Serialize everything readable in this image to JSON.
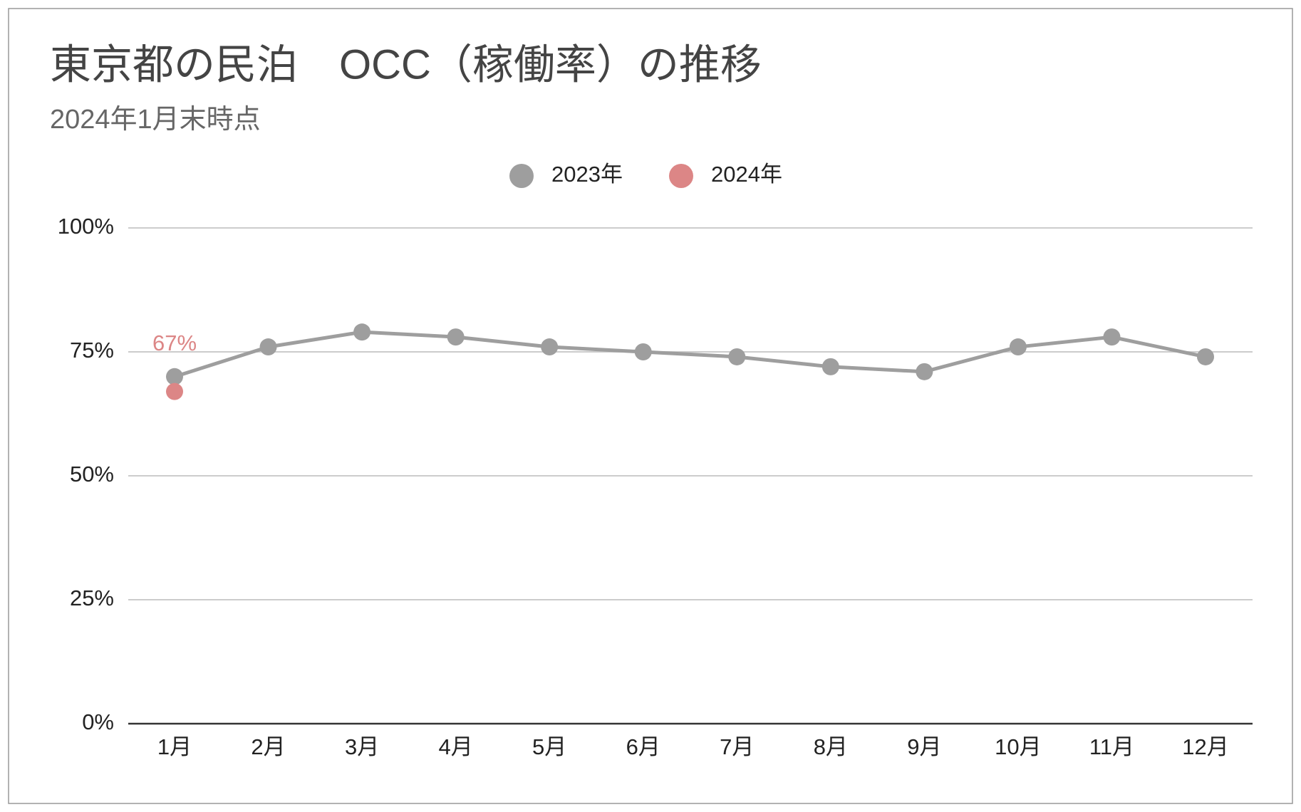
{
  "chart_data": {
    "type": "line",
    "title": "東京都の民泊　OCC（稼働率）の推移",
    "subtitle": "2024年1月末時点",
    "categories": [
      "1月",
      "2月",
      "3月",
      "4月",
      "5月",
      "6月",
      "7月",
      "8月",
      "9月",
      "10月",
      "11月",
      "12月"
    ],
    "series": [
      {
        "name": "2023年",
        "color": "#9e9e9e",
        "values": [
          70,
          76,
          79,
          78,
          76,
          75,
          74,
          72,
          71,
          76,
          78,
          74
        ]
      },
      {
        "name": "2024年",
        "color": "#dc8686",
        "values": [
          67,
          null,
          null,
          null,
          null,
          null,
          null,
          null,
          null,
          null,
          null,
          null
        ],
        "value_labels": [
          "67%",
          null,
          null,
          null,
          null,
          null,
          null,
          null,
          null,
          null,
          null,
          null
        ]
      }
    ],
    "ylim": [
      0,
      100
    ],
    "yticks": [
      {
        "value": 0,
        "label": "0%"
      },
      {
        "value": 25,
        "label": "25%"
      },
      {
        "value": 50,
        "label": "50%"
      },
      {
        "value": 75,
        "label": "75%"
      },
      {
        "value": 100,
        "label": "100%"
      }
    ],
    "grid": true,
    "legend": "top"
  }
}
